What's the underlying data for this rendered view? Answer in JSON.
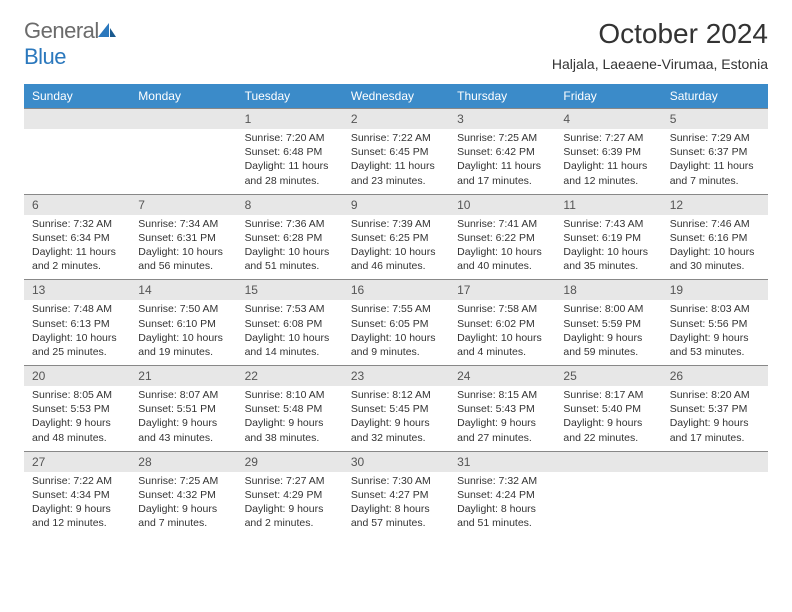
{
  "logo": {
    "general": "General",
    "blue": "Blue"
  },
  "title": "October 2024",
  "location": "Haljala, Laeaene-Virumaa, Estonia",
  "colors": {
    "header_bg": "#3b8bc9",
    "header_text": "#ffffff",
    "daynum_bg": "#e7e7e7",
    "border": "#888888",
    "logo_gray": "#6b6b6b",
    "logo_blue": "#2b78bd"
  },
  "day_names": [
    "Sunday",
    "Monday",
    "Tuesday",
    "Wednesday",
    "Thursday",
    "Friday",
    "Saturday"
  ],
  "weeks": [
    [
      {
        "n": "",
        "sr": "",
        "ss": "",
        "dl": ""
      },
      {
        "n": "",
        "sr": "",
        "ss": "",
        "dl": ""
      },
      {
        "n": "1",
        "sr": "Sunrise: 7:20 AM",
        "ss": "Sunset: 6:48 PM",
        "dl": "Daylight: 11 hours and 28 minutes."
      },
      {
        "n": "2",
        "sr": "Sunrise: 7:22 AM",
        "ss": "Sunset: 6:45 PM",
        "dl": "Daylight: 11 hours and 23 minutes."
      },
      {
        "n": "3",
        "sr": "Sunrise: 7:25 AM",
        "ss": "Sunset: 6:42 PM",
        "dl": "Daylight: 11 hours and 17 minutes."
      },
      {
        "n": "4",
        "sr": "Sunrise: 7:27 AM",
        "ss": "Sunset: 6:39 PM",
        "dl": "Daylight: 11 hours and 12 minutes."
      },
      {
        "n": "5",
        "sr": "Sunrise: 7:29 AM",
        "ss": "Sunset: 6:37 PM",
        "dl": "Daylight: 11 hours and 7 minutes."
      }
    ],
    [
      {
        "n": "6",
        "sr": "Sunrise: 7:32 AM",
        "ss": "Sunset: 6:34 PM",
        "dl": "Daylight: 11 hours and 2 minutes."
      },
      {
        "n": "7",
        "sr": "Sunrise: 7:34 AM",
        "ss": "Sunset: 6:31 PM",
        "dl": "Daylight: 10 hours and 56 minutes."
      },
      {
        "n": "8",
        "sr": "Sunrise: 7:36 AM",
        "ss": "Sunset: 6:28 PM",
        "dl": "Daylight: 10 hours and 51 minutes."
      },
      {
        "n": "9",
        "sr": "Sunrise: 7:39 AM",
        "ss": "Sunset: 6:25 PM",
        "dl": "Daylight: 10 hours and 46 minutes."
      },
      {
        "n": "10",
        "sr": "Sunrise: 7:41 AM",
        "ss": "Sunset: 6:22 PM",
        "dl": "Daylight: 10 hours and 40 minutes."
      },
      {
        "n": "11",
        "sr": "Sunrise: 7:43 AM",
        "ss": "Sunset: 6:19 PM",
        "dl": "Daylight: 10 hours and 35 minutes."
      },
      {
        "n": "12",
        "sr": "Sunrise: 7:46 AM",
        "ss": "Sunset: 6:16 PM",
        "dl": "Daylight: 10 hours and 30 minutes."
      }
    ],
    [
      {
        "n": "13",
        "sr": "Sunrise: 7:48 AM",
        "ss": "Sunset: 6:13 PM",
        "dl": "Daylight: 10 hours and 25 minutes."
      },
      {
        "n": "14",
        "sr": "Sunrise: 7:50 AM",
        "ss": "Sunset: 6:10 PM",
        "dl": "Daylight: 10 hours and 19 minutes."
      },
      {
        "n": "15",
        "sr": "Sunrise: 7:53 AM",
        "ss": "Sunset: 6:08 PM",
        "dl": "Daylight: 10 hours and 14 minutes."
      },
      {
        "n": "16",
        "sr": "Sunrise: 7:55 AM",
        "ss": "Sunset: 6:05 PM",
        "dl": "Daylight: 10 hours and 9 minutes."
      },
      {
        "n": "17",
        "sr": "Sunrise: 7:58 AM",
        "ss": "Sunset: 6:02 PM",
        "dl": "Daylight: 10 hours and 4 minutes."
      },
      {
        "n": "18",
        "sr": "Sunrise: 8:00 AM",
        "ss": "Sunset: 5:59 PM",
        "dl": "Daylight: 9 hours and 59 minutes."
      },
      {
        "n": "19",
        "sr": "Sunrise: 8:03 AM",
        "ss": "Sunset: 5:56 PM",
        "dl": "Daylight: 9 hours and 53 minutes."
      }
    ],
    [
      {
        "n": "20",
        "sr": "Sunrise: 8:05 AM",
        "ss": "Sunset: 5:53 PM",
        "dl": "Daylight: 9 hours and 48 minutes."
      },
      {
        "n": "21",
        "sr": "Sunrise: 8:07 AM",
        "ss": "Sunset: 5:51 PM",
        "dl": "Daylight: 9 hours and 43 minutes."
      },
      {
        "n": "22",
        "sr": "Sunrise: 8:10 AM",
        "ss": "Sunset: 5:48 PM",
        "dl": "Daylight: 9 hours and 38 minutes."
      },
      {
        "n": "23",
        "sr": "Sunrise: 8:12 AM",
        "ss": "Sunset: 5:45 PM",
        "dl": "Daylight: 9 hours and 32 minutes."
      },
      {
        "n": "24",
        "sr": "Sunrise: 8:15 AM",
        "ss": "Sunset: 5:43 PM",
        "dl": "Daylight: 9 hours and 27 minutes."
      },
      {
        "n": "25",
        "sr": "Sunrise: 8:17 AM",
        "ss": "Sunset: 5:40 PM",
        "dl": "Daylight: 9 hours and 22 minutes."
      },
      {
        "n": "26",
        "sr": "Sunrise: 8:20 AM",
        "ss": "Sunset: 5:37 PM",
        "dl": "Daylight: 9 hours and 17 minutes."
      }
    ],
    [
      {
        "n": "27",
        "sr": "Sunrise: 7:22 AM",
        "ss": "Sunset: 4:34 PM",
        "dl": "Daylight: 9 hours and 12 minutes."
      },
      {
        "n": "28",
        "sr": "Sunrise: 7:25 AM",
        "ss": "Sunset: 4:32 PM",
        "dl": "Daylight: 9 hours and 7 minutes."
      },
      {
        "n": "29",
        "sr": "Sunrise: 7:27 AM",
        "ss": "Sunset: 4:29 PM",
        "dl": "Daylight: 9 hours and 2 minutes."
      },
      {
        "n": "30",
        "sr": "Sunrise: 7:30 AM",
        "ss": "Sunset: 4:27 PM",
        "dl": "Daylight: 8 hours and 57 minutes."
      },
      {
        "n": "31",
        "sr": "Sunrise: 7:32 AM",
        "ss": "Sunset: 4:24 PM",
        "dl": "Daylight: 8 hours and 51 minutes."
      },
      {
        "n": "",
        "sr": "",
        "ss": "",
        "dl": ""
      },
      {
        "n": "",
        "sr": "",
        "ss": "",
        "dl": ""
      }
    ]
  ]
}
